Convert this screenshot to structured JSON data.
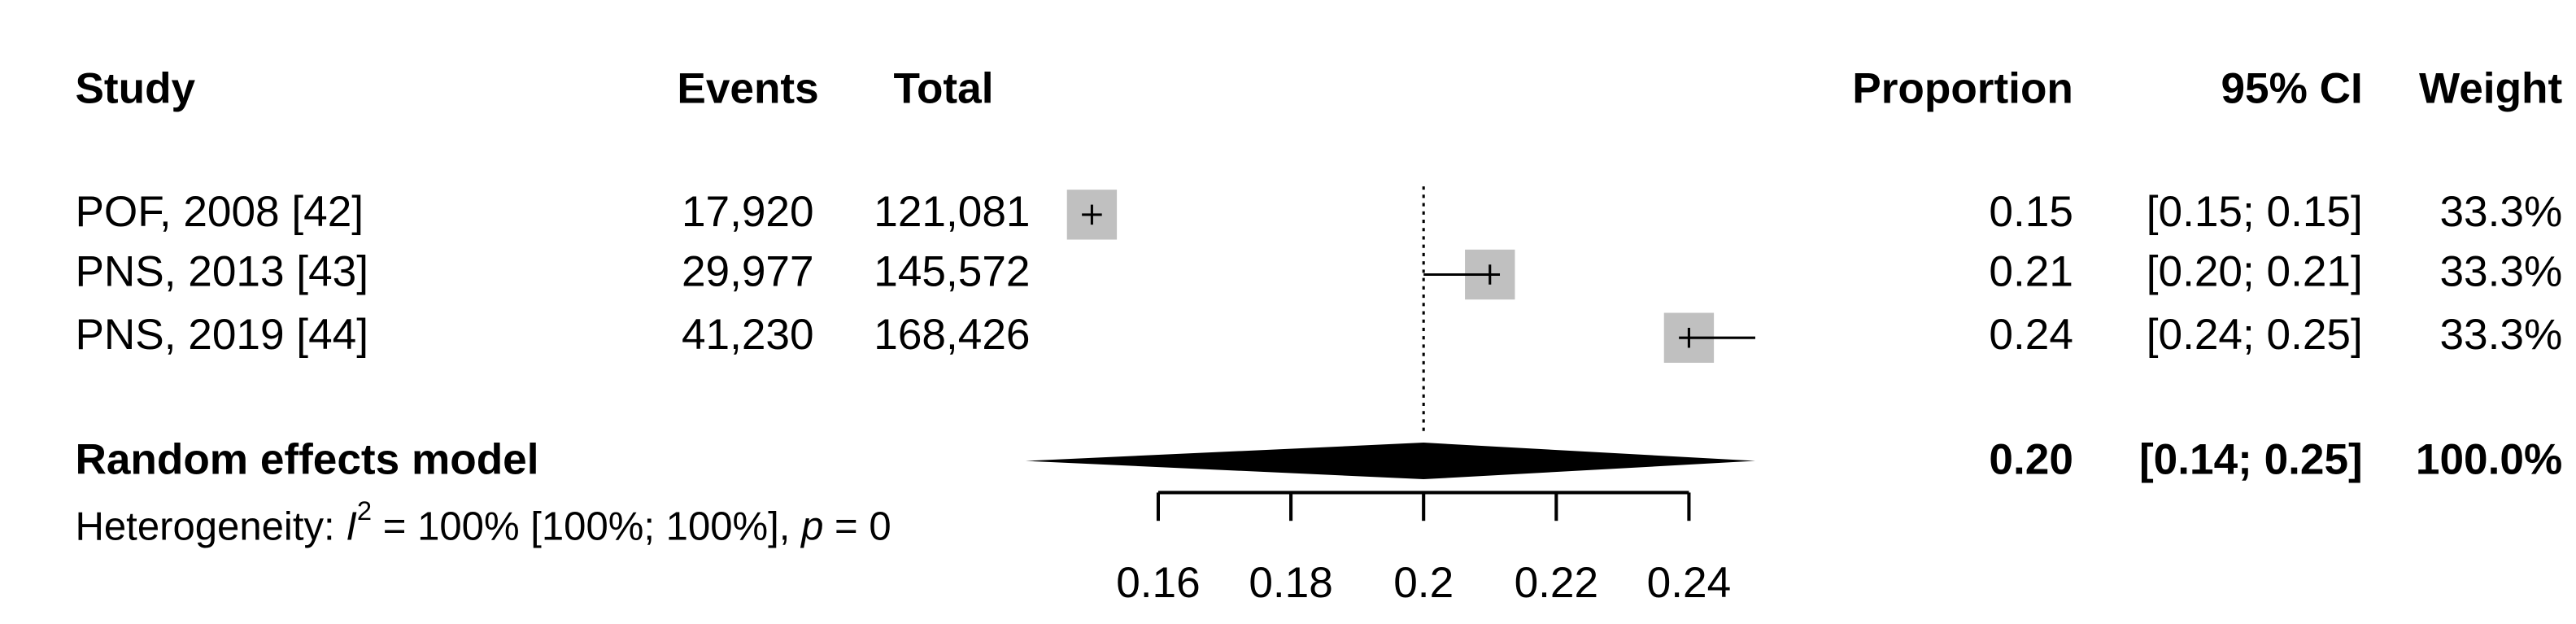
{
  "chart_data": {
    "type": "forest",
    "headers": {
      "study": "Study",
      "events": "Events",
      "total": "Total",
      "proportion": "Proportion",
      "ci": "95% CI",
      "weight": "Weight"
    },
    "categories": [
      "POF, 2008 [42]",
      "PNS, 2013 [43]",
      "PNS, 2019 [44]"
    ],
    "events": [
      "17,920",
      "29,977",
      "41,230"
    ],
    "totals": [
      "121,081",
      "145,572",
      "168,426"
    ],
    "values": [
      0.15,
      0.21,
      0.24
    ],
    "ci_lower": [
      0.15,
      0.2,
      0.24
    ],
    "ci_upper": [
      0.15,
      0.21,
      0.25
    ],
    "ci_labels": [
      "[0.15; 0.15]",
      "[0.20; 0.21]",
      "[0.24; 0.25]"
    ],
    "weights": [
      33.3,
      33.3,
      33.3
    ],
    "weight_labels": [
      "33.3%",
      "33.3%",
      "33.3%"
    ],
    "pooled": {
      "name": "Random effects model",
      "value": 0.2,
      "value_label": "0.20",
      "ci_lower": 0.14,
      "ci_upper": 0.25,
      "ci_label": "[0.14; 0.25]",
      "weight": 100.0,
      "weight_label": "100.0%"
    },
    "heterogeneity": {
      "prefix": "Heterogeneity: ",
      "stat": "I",
      "sup": "2",
      "middle": " = 100% [100%; 100%], ",
      "p": "p",
      "tail": " = 0"
    },
    "ref_line": 0.2,
    "xlim": [
      0.16,
      0.24
    ],
    "xticks": [
      0.16,
      0.18,
      0.2,
      0.22,
      0.24
    ],
    "square_color": "#c0c0c0",
    "diamond_color": "#000000"
  }
}
